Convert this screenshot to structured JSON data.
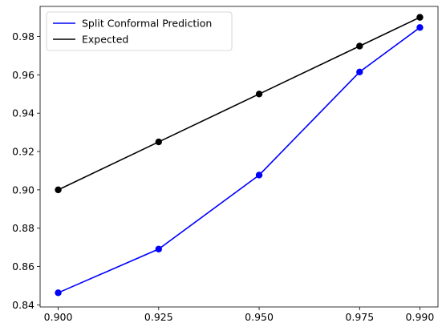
{
  "chart_data": {
    "type": "line",
    "title": "",
    "xlabel": "",
    "ylabel": "",
    "x": [
      0.9,
      0.925,
      0.95,
      0.975,
      0.99
    ],
    "xticks": [
      "0.900",
      "0.925",
      "0.950",
      "0.975",
      "0.990"
    ],
    "yticks": [
      "0.84",
      "0.86",
      "0.88",
      "0.90",
      "0.92",
      "0.94",
      "0.96",
      "0.98"
    ],
    "ytick_values": [
      0.84,
      0.86,
      0.88,
      0.9,
      0.92,
      0.94,
      0.96,
      0.98
    ],
    "xlim": [
      0.8955,
      0.9945
    ],
    "ylim": [
      0.8389,
      0.9957
    ],
    "grid": false,
    "legend_position": "top-left",
    "series": [
      {
        "name": "Split Conformal Prediction",
        "color": "#0000ff",
        "values": [
          0.8463,
          0.8691,
          0.9077,
          0.9615,
          0.9847
        ]
      },
      {
        "name": "Expected",
        "color": "#000000",
        "values": [
          0.9,
          0.925,
          0.95,
          0.975,
          0.99
        ]
      }
    ]
  }
}
